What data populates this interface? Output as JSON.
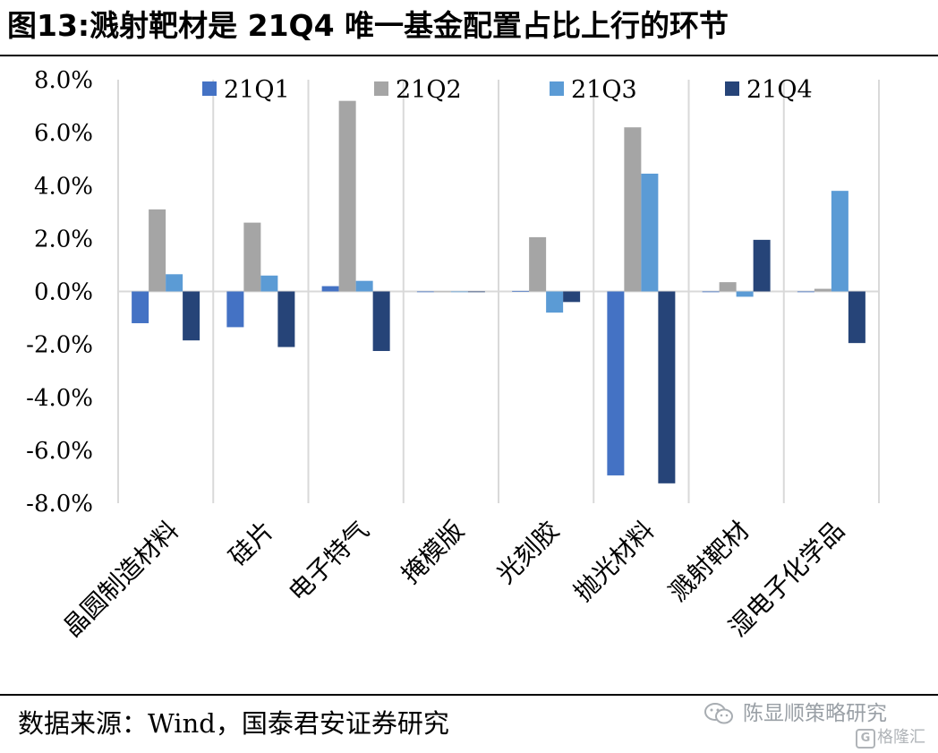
{
  "figure_title": "图13:溅射靶材是 21Q4 唯一基金配置占比上行的环节",
  "source": "数据来源：Wind，国泰君安证券研究",
  "watermark": {
    "name": "陈显顺策略研究",
    "brand_letter": "G",
    "brand": "格隆汇"
  },
  "colors": {
    "21Q1": "#4472c4",
    "21Q2": "#a5a5a5",
    "21Q3": "#5b9bd5",
    "21Q4": "#264478",
    "grid": "#d9d9d9"
  },
  "chart_data": {
    "type": "bar",
    "title": "",
    "xlabel": "",
    "ylabel": "",
    "ylim": [
      -8.0,
      8.0
    ],
    "ytick_step": 2.0,
    "yticks": [
      "8.0%",
      "6.0%",
      "4.0%",
      "2.0%",
      "0.0%",
      "-2.0%",
      "-4.0%",
      "-6.0%",
      "-8.0%"
    ],
    "grid": true,
    "legend_position": "top",
    "categories": [
      "晶圆制造材料",
      "硅片",
      "电子特气",
      "掩模版",
      "光刻胶",
      "抛光材料",
      "溅射靶材",
      "湿电子化学品"
    ],
    "series": [
      {
        "name": "21Q1",
        "values": [
          -1.2,
          -1.35,
          0.2,
          0.0,
          0.02,
          -6.95,
          0.0,
          0.0
        ]
      },
      {
        "name": "21Q2",
        "values": [
          3.1,
          2.6,
          7.2,
          0.0,
          2.05,
          6.2,
          0.35,
          0.1
        ]
      },
      {
        "name": "21Q3",
        "values": [
          0.65,
          0.6,
          0.4,
          0.0,
          -0.8,
          4.45,
          -0.2,
          3.8
        ]
      },
      {
        "name": "21Q4",
        "values": [
          -1.85,
          -2.1,
          -2.25,
          0.0,
          -0.4,
          -7.25,
          1.95,
          -1.95
        ]
      }
    ]
  }
}
